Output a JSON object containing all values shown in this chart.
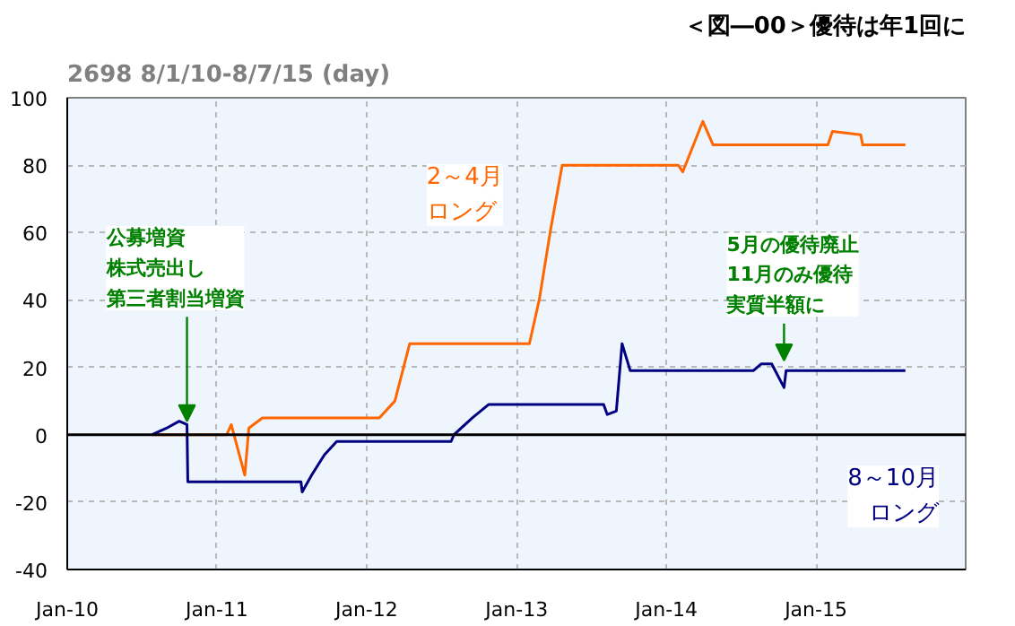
{
  "chart_data": {
    "type": "line",
    "title": "2698 8/1/10-8/7/15 (day)",
    "subtitle": "＜図―00＞優待は年1回に",
    "xlim": [
      "2010-01-01",
      "2016-01-01"
    ],
    "xticks": [
      {
        "value": "2010-01-01",
        "label": "Jan-10"
      },
      {
        "value": "2011-01-01",
        "label": "Jan-11"
      },
      {
        "value": "2012-01-01",
        "label": "Jan-12"
      },
      {
        "value": "2013-01-01",
        "label": "Jan-13"
      },
      {
        "value": "2014-01-01",
        "label": "Jan-14"
      },
      {
        "value": "2015-01-01",
        "label": "Jan-15"
      }
    ],
    "ylim": [
      -40,
      100
    ],
    "yticks": [
      -40,
      -20,
      0,
      20,
      40,
      60,
      80,
      100
    ],
    "grid": true,
    "legend": false,
    "marker": "none",
    "line_style": "solid",
    "ref_lines": [
      {
        "axis": "y",
        "value": 0,
        "label": null,
        "color": "#000000"
      }
    ],
    "series": [
      {
        "name": "2～4月ロング",
        "color": "#ff6600",
        "x": [
          "2010-07-27",
          "2011-01-25",
          "2011-02-05",
          "2011-03-10",
          "2011-03-20",
          "2011-04-22",
          "2012-02-01",
          "2012-03-10",
          "2012-04-15",
          "2013-02-01",
          "2013-02-25",
          "2013-03-25",
          "2013-04-22",
          "2014-01-30",
          "2014-02-10",
          "2014-03-31",
          "2014-04-25",
          "2015-01-30",
          "2015-02-10",
          "2015-04-20",
          "2015-04-25",
          "2015-08-07"
        ],
        "values": [
          0,
          0,
          3,
          -12,
          2,
          5,
          5,
          10,
          27,
          27,
          40,
          61,
          80,
          80,
          78,
          93,
          86,
          86,
          90,
          89,
          86,
          86
        ]
      },
      {
        "name": "8～10月ロング",
        "color": "#000080",
        "x": [
          "2010-07-27",
          "2010-09-01",
          "2010-10-01",
          "2010-10-20",
          "2010-10-22",
          "2011-07-25",
          "2011-07-28",
          "2011-08-20",
          "2011-09-20",
          "2011-10-20",
          "2012-07-25",
          "2012-08-01",
          "2012-09-15",
          "2012-10-25",
          "2013-08-01",
          "2013-08-10",
          "2013-09-01",
          "2013-09-15",
          "2013-10-05",
          "2014-08-01",
          "2014-08-20",
          "2014-09-15",
          "2014-10-15",
          "2014-10-20",
          "2015-08-07"
        ],
        "values": [
          0,
          2,
          4,
          3,
          -14,
          -14,
          -17,
          -12,
          -6,
          -2,
          -2,
          0,
          5,
          9,
          9,
          6,
          7,
          27,
          19,
          19,
          21,
          21,
          14,
          19,
          19
        ]
      }
    ],
    "annotations": [
      {
        "text": "公募増資株式売出し第三者割当増資",
        "x": "2010-10-20",
        "y": 3
      },
      {
        "text": "5月の優待廃止11月のみ優待実質半額に",
        "x": "2014-10-15",
        "y": 21
      }
    ]
  }
}
